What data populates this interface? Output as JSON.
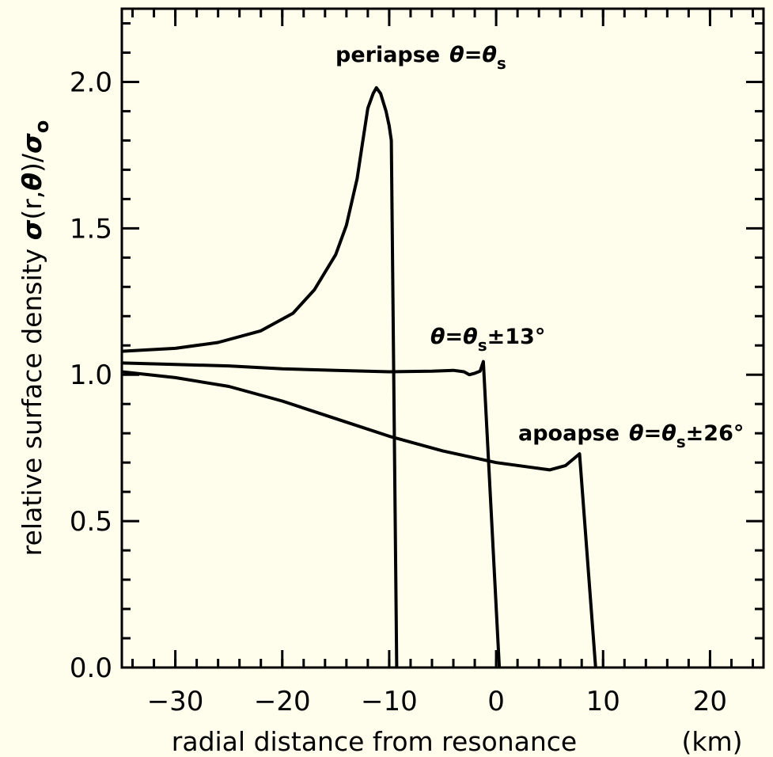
{
  "chart_data": {
    "type": "line",
    "xlabel": "radial distance from resonance",
    "xunit": "(km)",
    "ylabel_text": "relative surface density ",
    "ylabel_sigma": "σ",
    "ylabel_args": "(r,",
    "ylabel_theta": "θ",
    "ylabel_close": ")/",
    "ylabel_sigma0": "σ",
    "ylabel_sub": "o",
    "xlim": [
      -35,
      25
    ],
    "ylim": [
      0,
      2.25
    ],
    "xticks": [
      -30,
      -20,
      -10,
      0,
      10,
      20
    ],
    "xtick_labels": [
      "−30",
      "−20",
      "−10",
      "0",
      "10",
      "20"
    ],
    "yticks": [
      0,
      0.5,
      1.0,
      1.5,
      2.0
    ],
    "ytick_labels": [
      "0.0",
      "0.5",
      "1.0",
      "1.5",
      "2.0"
    ],
    "grid": false,
    "series": [
      {
        "values": [
          [
            -35,
            1.08
          ],
          [
            -30,
            1.09
          ],
          [
            -26,
            1.11
          ],
          [
            -22,
            1.15
          ],
          [
            -19,
            1.21
          ],
          [
            -17,
            1.29
          ],
          [
            -15,
            1.41
          ],
          [
            -14,
            1.51
          ],
          [
            -13,
            1.67
          ],
          [
            -12.5,
            1.79
          ],
          [
            -12,
            1.91
          ],
          [
            -11.5,
            1.96
          ],
          [
            -11.2,
            1.98
          ],
          [
            -10.8,
            1.96
          ],
          [
            -10.3,
            1.9
          ],
          [
            -10.0,
            1.85
          ],
          [
            -9.8,
            1.8
          ],
          [
            -9.3,
            0.0
          ]
        ]
      },
      {
        "values": [
          [
            -35,
            1.04
          ],
          [
            -30,
            1.035
          ],
          [
            -25,
            1.03
          ],
          [
            -20,
            1.02
          ],
          [
            -15,
            1.015
          ],
          [
            -10,
            1.01
          ],
          [
            -6,
            1.012
          ],
          [
            -4,
            1.015
          ],
          [
            -3,
            1.01
          ],
          [
            -2.5,
            1.0
          ],
          [
            -2,
            1.005
          ],
          [
            -1.5,
            1.012
          ],
          [
            -1.2,
            1.045
          ],
          [
            0.3,
            0.0
          ]
        ]
      },
      {
        "values": [
          [
            -35,
            1.01
          ],
          [
            -30,
            0.99
          ],
          [
            -25,
            0.96
          ],
          [
            -20,
            0.91
          ],
          [
            -15,
            0.85
          ],
          [
            -10,
            0.79
          ],
          [
            -5,
            0.74
          ],
          [
            0,
            0.7
          ],
          [
            3,
            0.685
          ],
          [
            5,
            0.675
          ],
          [
            6.5,
            0.69
          ],
          [
            7.8,
            0.73
          ],
          [
            9.3,
            0.0
          ]
        ]
      }
    ],
    "annotations": [
      {
        "label": "periapse",
        "expr": "θ=θ",
        "sub": "s",
        "tail": ""
      },
      {
        "label": "",
        "expr": "θ=θ",
        "sub": "s",
        "tail": "±13°"
      },
      {
        "label": "apoapse",
        "expr": "θ=θ",
        "sub": "s",
        "tail": "±26°"
      }
    ]
  }
}
